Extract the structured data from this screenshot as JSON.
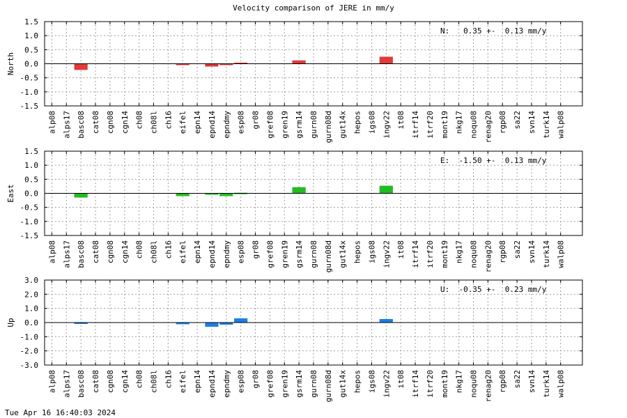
{
  "page": {
    "title": "Velocity comparison of JERE in mm/y",
    "timestamp": "Tue Apr 16 16:40:03 2024"
  },
  "chart_data": [
    {
      "type": "bar",
      "ylabel": "North",
      "ylim": [
        -1.5,
        1.5
      ],
      "yticks": [
        "1.5",
        "1.0",
        "0.5",
        "0.0",
        "-0.5",
        "-1.0",
        "-1.5"
      ],
      "annotation": "N:   0.35 +-  0.13 mm/y",
      "color": "#e03a3a",
      "grid": true,
      "categories": [
        "alp08",
        "alps17",
        "basc08",
        "cat08",
        "cgn08",
        "cgn14",
        "ch08",
        "ch08l",
        "ch16",
        "eifel",
        "epn14",
        "epnd14",
        "epndmy",
        "esp08",
        "gr08",
        "gref08",
        "gren19",
        "gsrm14",
        "gurn08",
        "gurn08d",
        "gut14x",
        "hepos",
        "igs08",
        "ingv22",
        "it08",
        "itrf14",
        "itrf20",
        "mont19",
        "nkg17",
        "noqu08",
        "renag20",
        "rgp08",
        "sa22",
        "svn14",
        "turk14",
        "walp08"
      ],
      "values": [
        0,
        0,
        -0.22,
        0,
        0,
        0,
        0,
        0,
        0,
        -0.05,
        0,
        -0.1,
        -0.03,
        0.04,
        0,
        0,
        0,
        0.12,
        0,
        0,
        0,
        0,
        0,
        0.25,
        0,
        0,
        0,
        0,
        0,
        0,
        0,
        0,
        0,
        0,
        0,
        0
      ]
    },
    {
      "type": "bar",
      "ylabel": "East",
      "ylim": [
        -1.5,
        1.5
      ],
      "yticks": [
        "1.5",
        "1.0",
        "0.5",
        "0.0",
        "-0.5",
        "-1.0",
        "-1.5"
      ],
      "annotation": "E:  -1.50 +-  0.13 mm/y",
      "color": "#22bb22",
      "grid": true,
      "categories": [
        "alp08",
        "alps17",
        "basc08",
        "cat08",
        "cgn08",
        "cgn14",
        "ch08",
        "ch08l",
        "ch16",
        "eifel",
        "epn14",
        "epnd14",
        "epndmy",
        "esp08",
        "gr08",
        "gref08",
        "gren19",
        "gsrm14",
        "gurn08",
        "gurn08d",
        "gut14x",
        "hepos",
        "igs08",
        "ingv22",
        "it08",
        "itrf14",
        "itrf20",
        "mont19",
        "nkg17",
        "noqu08",
        "renag20",
        "rgp08",
        "sa22",
        "svn14",
        "turk14",
        "walp08"
      ],
      "values": [
        0,
        0,
        -0.15,
        0,
        0,
        0,
        0,
        0,
        0,
        -0.1,
        0,
        -0.05,
        -0.1,
        0.02,
        0,
        0,
        0,
        0.22,
        0,
        0,
        0,
        0,
        0,
        0.27,
        0,
        0,
        0,
        0,
        0,
        0,
        0,
        0,
        0,
        0,
        0,
        0
      ]
    },
    {
      "type": "bar",
      "ylabel": "Up",
      "ylim": [
        -3.0,
        3.0
      ],
      "yticks": [
        "3.0",
        "2.0",
        "1.0",
        "0.0",
        "-1.0",
        "-2.0",
        "-3.0"
      ],
      "annotation": "U:  -0.35 +-  0.23 mm/y",
      "color": "#1a7fe8",
      "grid": true,
      "categories": [
        "alp08",
        "alps17",
        "basc08",
        "cat08",
        "cgn08",
        "cgn14",
        "ch08",
        "ch08l",
        "ch16",
        "eifel",
        "epn14",
        "epnd14",
        "epndmy",
        "esp08",
        "gr08",
        "gref08",
        "gren19",
        "gsrm14",
        "gurn08",
        "gurn08d",
        "gut14x",
        "hepos",
        "igs08",
        "ingv22",
        "it08",
        "itrf14",
        "itrf20",
        "mont19",
        "nkg17",
        "noqu08",
        "renag20",
        "rgp08",
        "sa22",
        "svn14",
        "turk14",
        "walp08"
      ],
      "values": [
        0,
        0,
        -0.05,
        0,
        0,
        0,
        0,
        0,
        0,
        -0.12,
        0,
        -0.3,
        -0.15,
        0.3,
        0,
        0,
        0,
        0,
        0,
        0,
        0,
        0,
        0,
        0.25,
        0,
        0,
        0,
        0,
        0,
        0,
        0,
        0,
        0,
        0,
        0,
        0
      ]
    }
  ]
}
